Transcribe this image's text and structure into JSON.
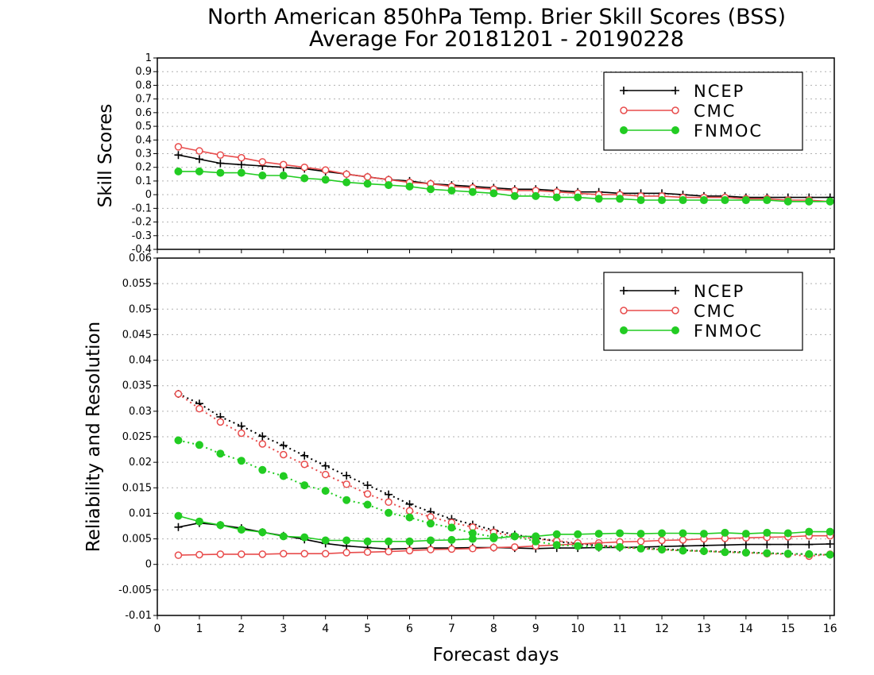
{
  "title_line1": "North American 850hPa Temp. Brier Skill Scores (BSS)",
  "title_line2": "Average For 20181201 - 20190228",
  "xlabel": "Forecast days",
  "legend": [
    "NCEP",
    "CMC",
    "FNMOC"
  ],
  "colors": {
    "NCEP": "#000000",
    "CMC": "#e84c4c",
    "FNMOC": "#22cc22"
  },
  "chart_data": [
    {
      "type": "line",
      "title": "North American 850hPa Temp. Brier Skill Scores (BSS)",
      "subtitle": "Average For 20181201 - 20190228",
      "xlabel": "Forecast days",
      "ylabel": "Skill Scores",
      "xlim": [
        0,
        16.1
      ],
      "ylim": [
        -0.4,
        1
      ],
      "yticks": [
        "1",
        "0.9",
        "0.8",
        "0.7",
        "0.6",
        "0.5",
        "0.4",
        "0.3",
        "0.2",
        "0.1",
        "0",
        "-0.1",
        "-0.2",
        "-0.3",
        "-0.4"
      ],
      "grid": true,
      "legend_position": "top-right",
      "x": [
        0.5,
        1,
        1.5,
        2,
        2.5,
        3,
        3.5,
        4,
        4.5,
        5,
        5.5,
        6,
        6.5,
        7,
        7.5,
        8,
        8.5,
        9,
        9.5,
        10,
        10.5,
        11,
        11.5,
        12,
        12.5,
        13,
        13.5,
        14,
        14.5,
        15,
        15.5,
        16
      ],
      "series": [
        {
          "name": "NCEP",
          "marker": "plus",
          "style": "solid",
          "values": [
            0.29,
            0.26,
            0.23,
            0.22,
            0.21,
            0.2,
            0.19,
            0.17,
            0.15,
            0.13,
            0.11,
            0.1,
            0.08,
            0.07,
            0.06,
            0.05,
            0.04,
            0.04,
            0.03,
            0.02,
            0.02,
            0.01,
            0.01,
            0.01,
            0,
            -0.01,
            -0.01,
            -0.02,
            -0.02,
            -0.02,
            -0.02,
            -0.02
          ]
        },
        {
          "name": "CMC",
          "marker": "open-circle",
          "style": "solid",
          "values": [
            0.35,
            0.32,
            0.29,
            0.27,
            0.24,
            0.22,
            0.2,
            0.18,
            0.15,
            0.13,
            0.11,
            0.09,
            0.08,
            0.06,
            0.05,
            0.04,
            0.03,
            0.03,
            0.02,
            0.01,
            0,
            0,
            -0.01,
            -0.01,
            -0.02,
            -0.02,
            -0.02,
            -0.03,
            -0.03,
            -0.04,
            -0.04,
            -0.05
          ]
        },
        {
          "name": "FNMOC",
          "marker": "filled-circle",
          "style": "solid",
          "values": [
            0.17,
            0.17,
            0.16,
            0.16,
            0.14,
            0.14,
            0.12,
            0.11,
            0.09,
            0.08,
            0.07,
            0.06,
            0.04,
            0.03,
            0.02,
            0.01,
            -0.01,
            -0.01,
            -0.02,
            -0.02,
            -0.03,
            -0.03,
            -0.04,
            -0.04,
            -0.04,
            -0.04,
            -0.04,
            -0.04,
            -0.04,
            -0.05,
            -0.05,
            -0.05
          ]
        }
      ]
    },
    {
      "type": "line",
      "xlabel": "Forecast days",
      "ylabel": "Reliability and Resolution",
      "xlim": [
        0,
        16.1
      ],
      "ylim": [
        -0.01,
        0.06
      ],
      "xticks": [
        "0",
        "1",
        "2",
        "3",
        "4",
        "5",
        "6",
        "7",
        "8",
        "9",
        "10",
        "11",
        "12",
        "13",
        "14",
        "15",
        "16"
      ],
      "yticks": [
        "0.06",
        "0.055",
        "0.05",
        "0.045",
        "0.04",
        "0.035",
        "0.03",
        "0.025",
        "0.02",
        "0.015",
        "0.01",
        "0.005",
        "0",
        "-0.005",
        "-0.01"
      ],
      "grid": true,
      "legend_position": "top-right",
      "x": [
        0.5,
        1,
        1.5,
        2,
        2.5,
        3,
        3.5,
        4,
        4.5,
        5,
        5.5,
        6,
        6.5,
        7,
        7.5,
        8,
        8.5,
        9,
        9.5,
        10,
        10.5,
        11,
        11.5,
        12,
        12.5,
        13,
        13.5,
        14,
        14.5,
        15,
        15.5,
        16
      ],
      "series": [
        {
          "name": "NCEP",
          "marker": "plus",
          "style": "solid",
          "values": [
            0.0073,
            0.0081,
            0.0077,
            0.0071,
            0.0063,
            0.0056,
            0.0049,
            0.0041,
            0.0036,
            0.0033,
            0.003,
            0.0031,
            0.0032,
            0.0032,
            0.0033,
            0.0033,
            0.0032,
            0.0031,
            0.0032,
            0.0032,
            0.0033,
            0.0033,
            0.0034,
            0.0035,
            0.0036,
            0.0037,
            0.0038,
            0.0039,
            0.0039,
            0.0039,
            0.0039,
            0.004
          ]
        },
        {
          "name": "NCEP",
          "marker": "plus",
          "style": "dotted",
          "values": [
            0.0334,
            0.0315,
            0.0289,
            0.0271,
            0.0251,
            0.0233,
            0.0213,
            0.0193,
            0.0174,
            0.0155,
            0.0137,
            0.0118,
            0.0103,
            0.0089,
            0.0078,
            0.0067,
            0.0058,
            0.0052,
            0.0045,
            0.004,
            0.0037,
            0.0034,
            0.0032,
            0.003,
            0.0028,
            0.0026,
            0.0025,
            0.0024,
            0.0022,
            0.0021,
            0.002,
            0.0019
          ]
        },
        {
          "name": "CMC",
          "marker": "open-circle",
          "style": "solid",
          "values": [
            0.0018,
            0.0019,
            0.002,
            0.002,
            0.002,
            0.0021,
            0.0021,
            0.0021,
            0.0023,
            0.0024,
            0.0025,
            0.0027,
            0.0029,
            0.003,
            0.0031,
            0.0033,
            0.0034,
            0.0036,
            0.0038,
            0.004,
            0.0042,
            0.0044,
            0.0045,
            0.0047,
            0.0048,
            0.005,
            0.0051,
            0.0052,
            0.0053,
            0.0054,
            0.0056,
            0.0056
          ]
        },
        {
          "name": "CMC",
          "marker": "open-circle",
          "style": "dotted",
          "values": [
            0.0334,
            0.0305,
            0.0279,
            0.0257,
            0.0236,
            0.0215,
            0.0196,
            0.0176,
            0.0157,
            0.0138,
            0.0122,
            0.0105,
            0.0093,
            0.0082,
            0.0073,
            0.0063,
            0.0055,
            0.005,
            0.0046,
            0.0042,
            0.0037,
            0.0034,
            0.0031,
            0.0029,
            0.0027,
            0.0026,
            0.0024,
            0.0023,
            0.0021,
            0.002,
            0.0016,
            0.002
          ]
        },
        {
          "name": "FNMOC",
          "marker": "filled-circle",
          "style": "solid",
          "values": [
            0.0095,
            0.0084,
            0.0077,
            0.0068,
            0.0063,
            0.0055,
            0.0053,
            0.0047,
            0.0047,
            0.0045,
            0.0045,
            0.0045,
            0.0047,
            0.0048,
            0.005,
            0.0051,
            0.0055,
            0.0055,
            0.0059,
            0.0059,
            0.006,
            0.0061,
            0.006,
            0.0061,
            0.0061,
            0.006,
            0.0062,
            0.006,
            0.0062,
            0.0061,
            0.0064,
            0.0064
          ]
        },
        {
          "name": "FNMOC",
          "marker": "filled-circle",
          "style": "dotted",
          "values": [
            0.0243,
            0.0234,
            0.0217,
            0.0203,
            0.0185,
            0.0173,
            0.0155,
            0.0144,
            0.0126,
            0.0117,
            0.0101,
            0.0092,
            0.008,
            0.0072,
            0.0061,
            0.0054,
            0.0055,
            0.0045,
            0.0038,
            0.0036,
            0.0034,
            0.0034,
            0.0031,
            0.0029,
            0.0027,
            0.0026,
            0.0024,
            0.0023,
            0.0022,
            0.0021,
            0.002,
            0.0019
          ]
        }
      ]
    }
  ]
}
